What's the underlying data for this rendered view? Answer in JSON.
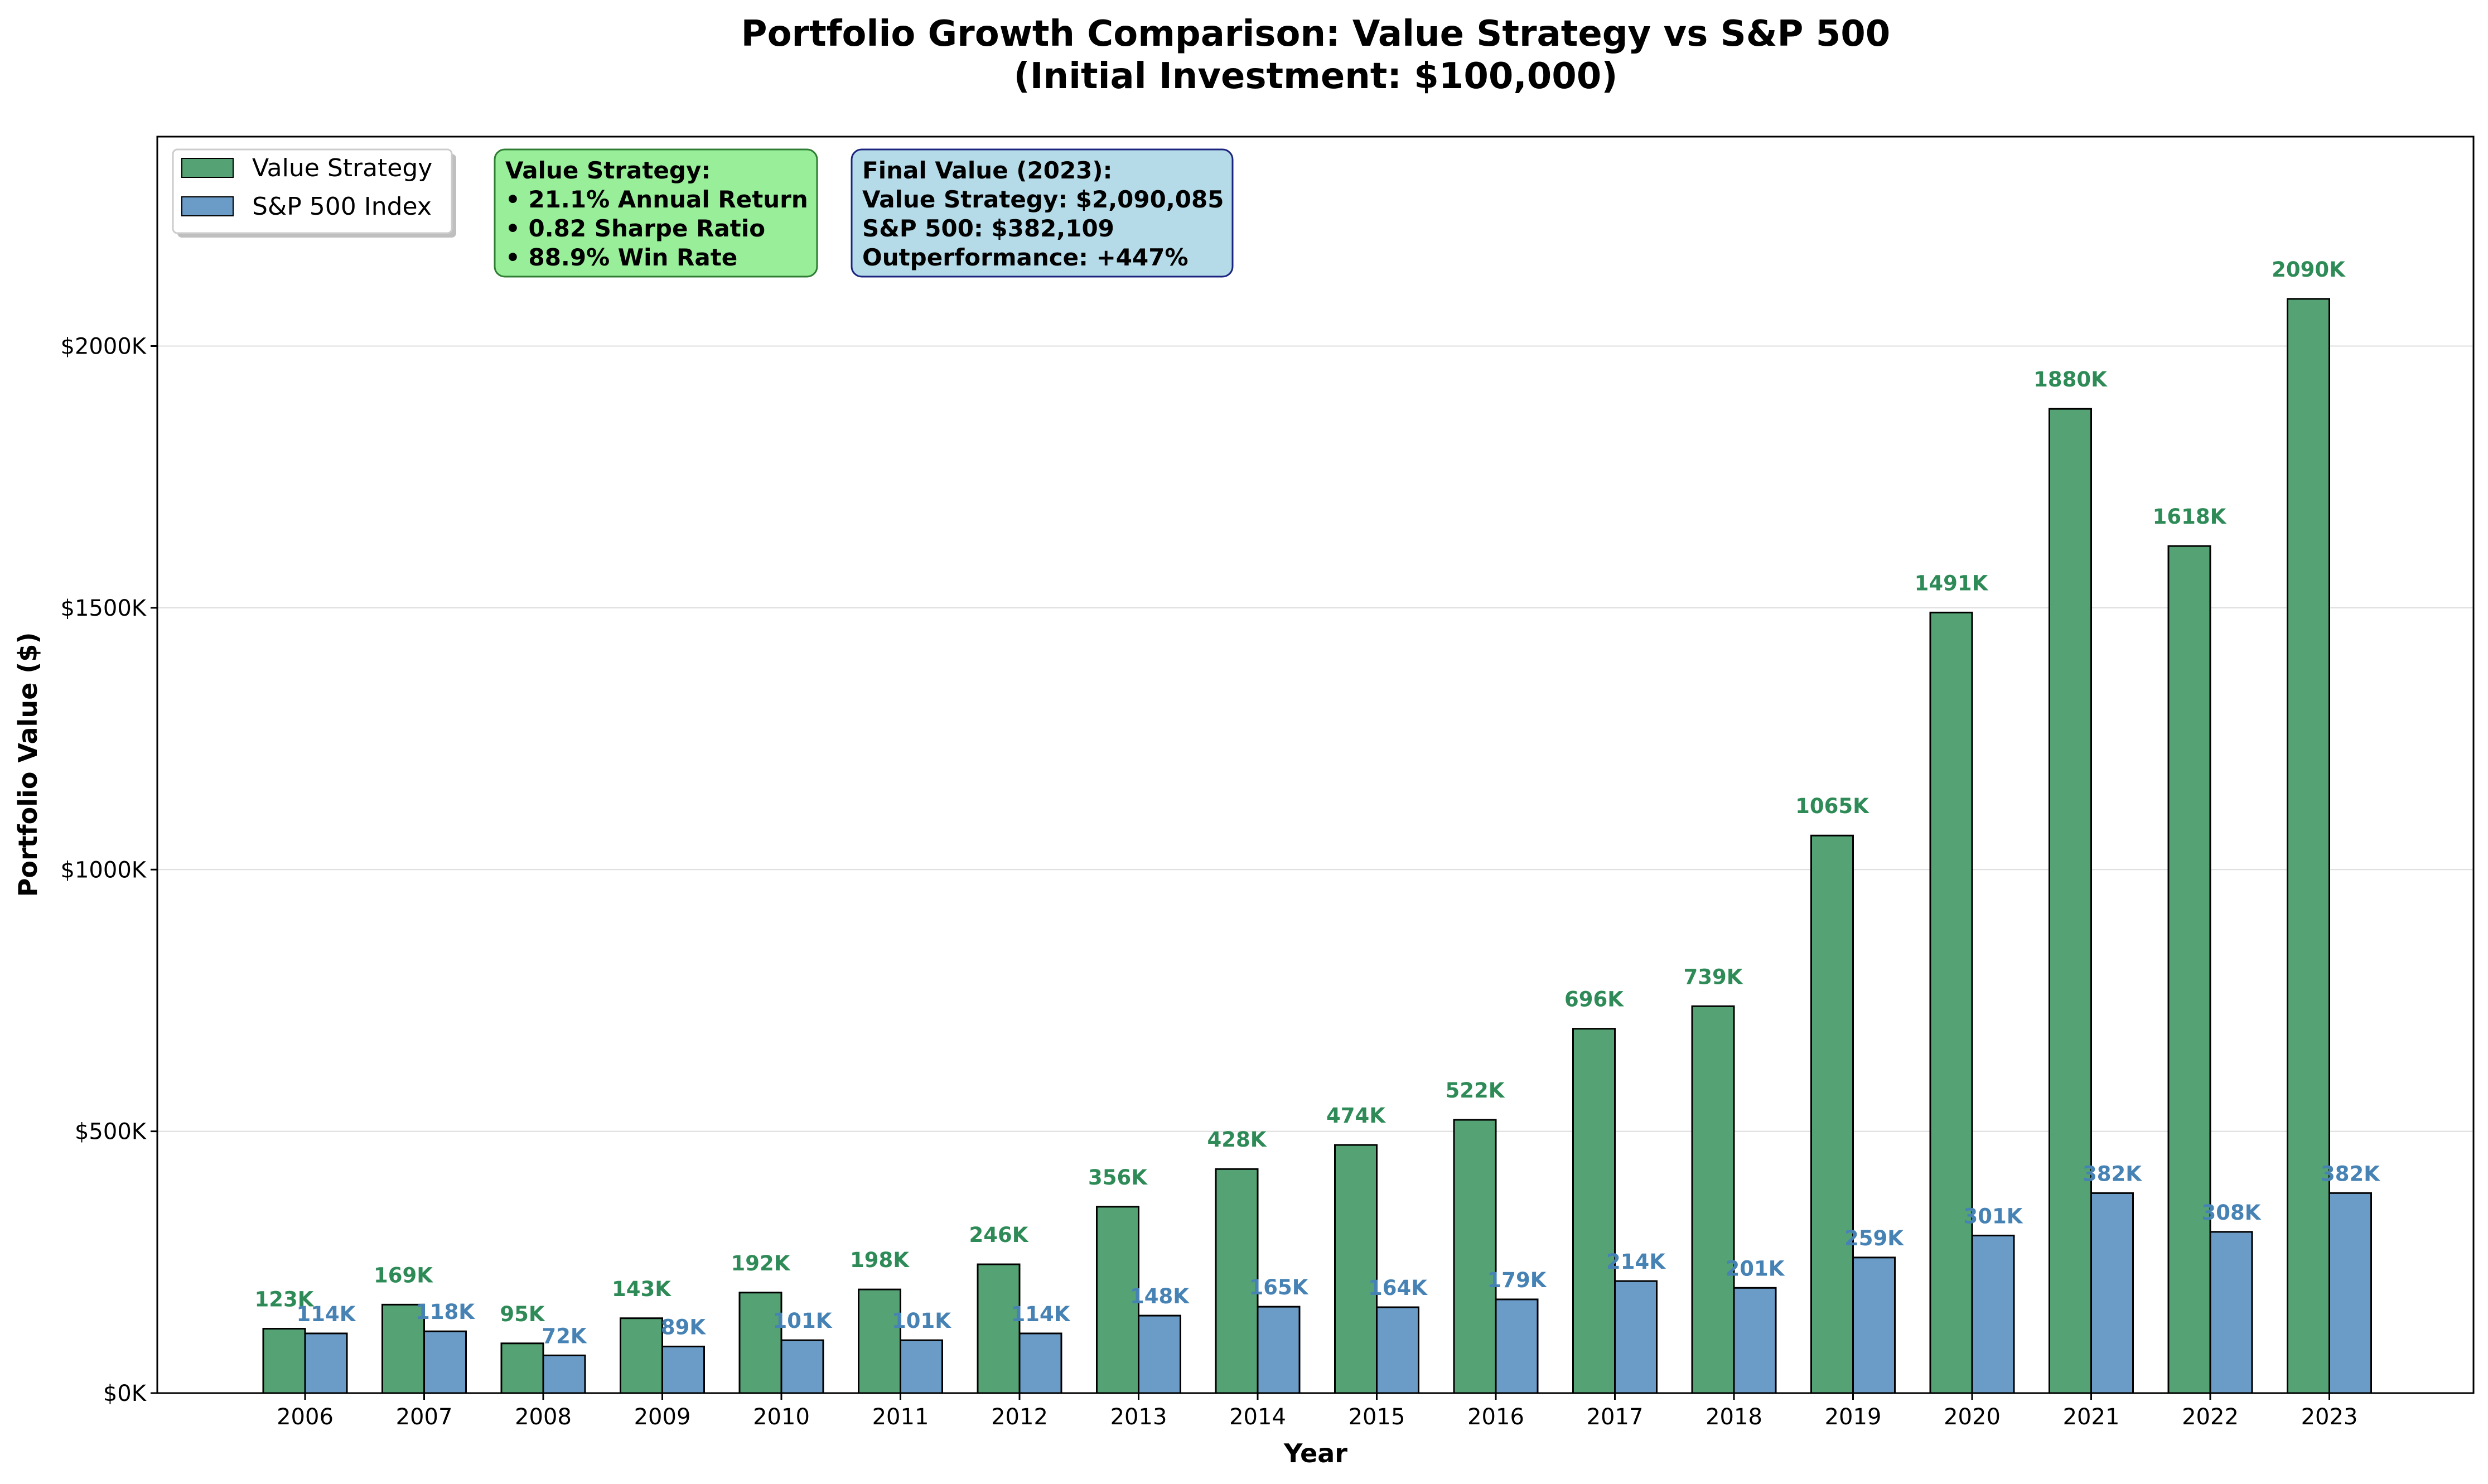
{
  "chart_data": {
    "type": "bar",
    "title_line1": "Portfolio Growth Comparison: Value Strategy vs S&P 500",
    "title_line2": "(Initial Investment: $100,000)",
    "xlabel": "Year",
    "ylabel": "Portfolio Value ($)",
    "ylim": [
      0,
      2400000
    ],
    "yticks": [
      0,
      500000,
      1000000,
      1500000,
      2000000
    ],
    "ytick_labels": [
      "$0K",
      "$500K",
      "$1000K",
      "$1500K",
      "$2000K"
    ],
    "grid": "horizontal",
    "legend_position": "top-left",
    "categories": [
      "2006",
      "2007",
      "2008",
      "2009",
      "2010",
      "2011",
      "2012",
      "2013",
      "2014",
      "2015",
      "2016",
      "2017",
      "2018",
      "2019",
      "2020",
      "2021",
      "2022",
      "2023"
    ],
    "series": [
      {
        "name": "Value Strategy",
        "color": "#55a374",
        "label_color": "#2e8b57",
        "values": [
          123000,
          169000,
          95000,
          143000,
          192000,
          198000,
          246000,
          356000,
          428000,
          474000,
          522000,
          696000,
          739000,
          1065000,
          1491000,
          1880000,
          1618000,
          2090085
        ],
        "labels": [
          "123K",
          "169K",
          "95K",
          "143K",
          "192K",
          "198K",
          "246K",
          "356K",
          "428K",
          "474K",
          "522K",
          "696K",
          "739K",
          "1065K",
          "1491K",
          "1880K",
          "1618K",
          "2090K"
        ]
      },
      {
        "name": "S&P 500 Index",
        "color": "#6b9bc7",
        "label_color": "#4682b4",
        "values": [
          114000,
          118000,
          72000,
          89000,
          101000,
          101000,
          114000,
          148000,
          165000,
          164000,
          179000,
          214000,
          201000,
          259000,
          301000,
          382000,
          308000,
          382109
        ],
        "labels": [
          "114K",
          "118K",
          "72K",
          "89K",
          "101K",
          "101K",
          "114K",
          "148K",
          "165K",
          "164K",
          "179K",
          "214K",
          "201K",
          "259K",
          "301K",
          "382K",
          "308K",
          "382K"
        ]
      }
    ]
  },
  "stats_box": {
    "lines": [
      "Value Strategy:",
      "• 21.1% Annual Return",
      "• 0.82 Sharpe Ratio",
      "• 88.9% Win Rate"
    ],
    "fill": "#98ee99",
    "border": "#2e7d32"
  },
  "final_box": {
    "lines": [
      "Final Value (2023):",
      "Value Strategy: $2,090,085",
      "S&P 500: $382,109",
      "Outperformance: +447%"
    ],
    "fill": "#b5dbe8",
    "border": "#1a237e"
  }
}
